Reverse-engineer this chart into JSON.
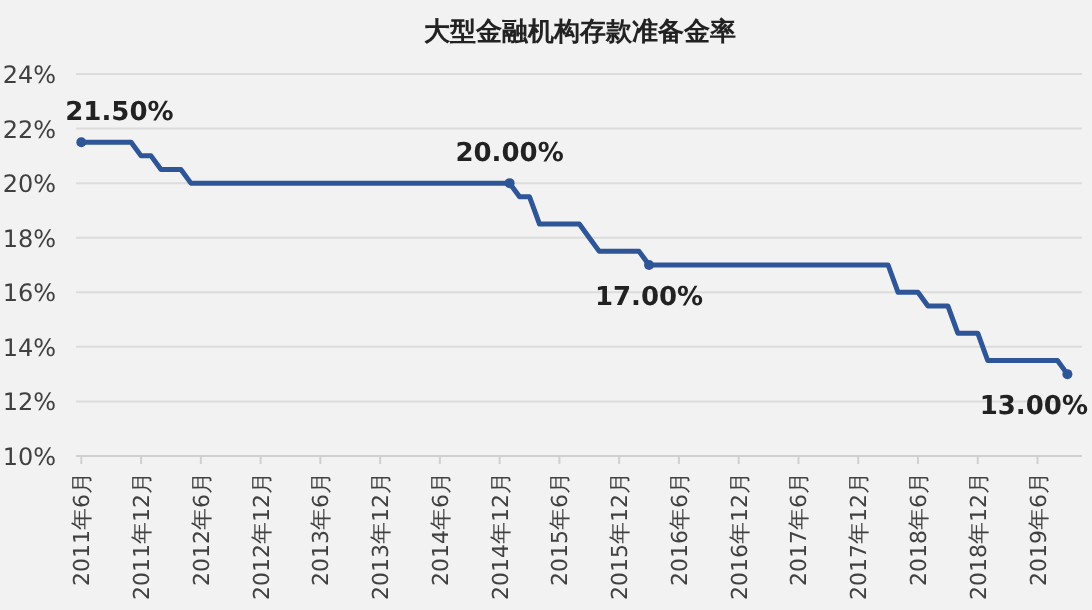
{
  "chart_data": {
    "type": "line",
    "title": "大型金融机构存款准备金率",
    "x": [
      "2011-06",
      "2011-07",
      "2011-08",
      "2011-09",
      "2011-10",
      "2011-11",
      "2011-12",
      "2012-01",
      "2012-02",
      "2012-03",
      "2012-04",
      "2012-05",
      "2012-06",
      "2012-07",
      "2012-08",
      "2012-09",
      "2012-10",
      "2012-11",
      "2012-12",
      "2013-01",
      "2013-02",
      "2013-03",
      "2013-04",
      "2013-05",
      "2013-06",
      "2013-07",
      "2013-08",
      "2013-09",
      "2013-10",
      "2013-11",
      "2013-12",
      "2014-01",
      "2014-02",
      "2014-03",
      "2014-04",
      "2014-05",
      "2014-06",
      "2014-07",
      "2014-08",
      "2014-09",
      "2014-10",
      "2014-11",
      "2014-12",
      "2015-01",
      "2015-02",
      "2015-03",
      "2015-04",
      "2015-05",
      "2015-06",
      "2015-07",
      "2015-08",
      "2015-09",
      "2015-10",
      "2015-11",
      "2015-12",
      "2016-01",
      "2016-02",
      "2016-03",
      "2016-04",
      "2016-05",
      "2016-06",
      "2016-07",
      "2016-08",
      "2016-09",
      "2016-10",
      "2016-11",
      "2016-12",
      "2017-01",
      "2017-02",
      "2017-03",
      "2017-04",
      "2017-05",
      "2017-06",
      "2017-07",
      "2017-08",
      "2017-09",
      "2017-10",
      "2017-11",
      "2017-12",
      "2018-01",
      "2018-02",
      "2018-03",
      "2018-04",
      "2018-05",
      "2018-06",
      "2018-07",
      "2018-08",
      "2018-09",
      "2018-10",
      "2018-11",
      "2018-12",
      "2019-01",
      "2019-02",
      "2019-03",
      "2019-04",
      "2019-05",
      "2019-06",
      "2019-07",
      "2019-08",
      "2019-09"
    ],
    "series": [
      {
        "color": "#2e5597",
        "values": [
          21.5,
          21.5,
          21.5,
          21.5,
          21.5,
          21.5,
          21.0,
          21.0,
          20.5,
          20.5,
          20.5,
          20.0,
          20.0,
          20.0,
          20.0,
          20.0,
          20.0,
          20.0,
          20.0,
          20.0,
          20.0,
          20.0,
          20.0,
          20.0,
          20.0,
          20.0,
          20.0,
          20.0,
          20.0,
          20.0,
          20.0,
          20.0,
          20.0,
          20.0,
          20.0,
          20.0,
          20.0,
          20.0,
          20.0,
          20.0,
          20.0,
          20.0,
          20.0,
          20.0,
          19.5,
          19.5,
          18.5,
          18.5,
          18.5,
          18.5,
          18.5,
          18.0,
          17.5,
          17.5,
          17.5,
          17.5,
          17.5,
          17.0,
          17.0,
          17.0,
          17.0,
          17.0,
          17.0,
          17.0,
          17.0,
          17.0,
          17.0,
          17.0,
          17.0,
          17.0,
          17.0,
          17.0,
          17.0,
          17.0,
          17.0,
          17.0,
          17.0,
          17.0,
          17.0,
          17.0,
          17.0,
          17.0,
          16.0,
          16.0,
          16.0,
          15.5,
          15.5,
          15.5,
          14.5,
          14.5,
          14.5,
          13.5,
          13.5,
          13.5,
          13.5,
          13.5,
          13.5,
          13.5,
          13.5,
          13.0
        ],
        "value_labels": [
          "21.50%",
          null,
          null,
          null,
          null,
          null,
          null,
          null,
          null,
          null,
          null,
          null,
          null,
          null,
          null,
          null,
          null,
          null,
          null,
          null,
          null,
          null,
          null,
          null,
          null,
          null,
          null,
          null,
          null,
          null,
          null,
          null,
          null,
          null,
          null,
          null,
          null,
          null,
          null,
          null,
          null,
          null,
          null,
          "20.00%",
          null,
          null,
          null,
          null,
          null,
          null,
          null,
          null,
          null,
          null,
          null,
          null,
          null,
          "17.00%",
          null,
          null,
          null,
          null,
          null,
          null,
          null,
          null,
          null,
          null,
          null,
          null,
          null,
          null,
          null,
          null,
          null,
          null,
          null,
          null,
          null,
          null,
          null,
          null,
          null,
          null,
          null,
          null,
          null,
          null,
          null,
          null,
          null,
          null,
          null,
          null,
          null,
          null,
          null,
          null,
          null,
          "13.00%"
        ]
      }
    ],
    "xlim": [
      "2011-05-15",
      "2019-10-15"
    ],
    "xticks": [
      {
        "value": "2011-06",
        "label": "2011年6月"
      },
      {
        "value": "2011-12",
        "label": "2011年12月"
      },
      {
        "value": "2012-06",
        "label": "2012年6月"
      },
      {
        "value": "2012-12",
        "label": "2012年12月"
      },
      {
        "value": "2013-06",
        "label": "2013年6月"
      },
      {
        "value": "2013-12",
        "label": "2013年12月"
      },
      {
        "value": "2014-06",
        "label": "2014年6月"
      },
      {
        "value": "2014-12",
        "label": "2014年12月"
      },
      {
        "value": "2015-06",
        "label": "2015年6月"
      },
      {
        "value": "2015-12",
        "label": "2015年12月"
      },
      {
        "value": "2016-06",
        "label": "2016年6月"
      },
      {
        "value": "2016-12",
        "label": "2016年12月"
      },
      {
        "value": "2017-06",
        "label": "2017年6月"
      },
      {
        "value": "2017-12",
        "label": "2017年12月"
      },
      {
        "value": "2018-06",
        "label": "2018年6月"
      },
      {
        "value": "2018-12",
        "label": "2018年12月"
      },
      {
        "value": "2019-06",
        "label": "2019年6月"
      }
    ],
    "ylim": [
      10,
      24
    ],
    "yticks": [
      {
        "value": 10,
        "label": "10%"
      },
      {
        "value": 12,
        "label": "12%"
      },
      {
        "value": 14,
        "label": "14%"
      },
      {
        "value": 16,
        "label": "16%"
      },
      {
        "value": 18,
        "label": "18%"
      },
      {
        "value": 20,
        "label": "20%"
      },
      {
        "value": 22,
        "label": "22%"
      },
      {
        "value": 24,
        "label": "24%"
      }
    ],
    "grid": "y"
  }
}
